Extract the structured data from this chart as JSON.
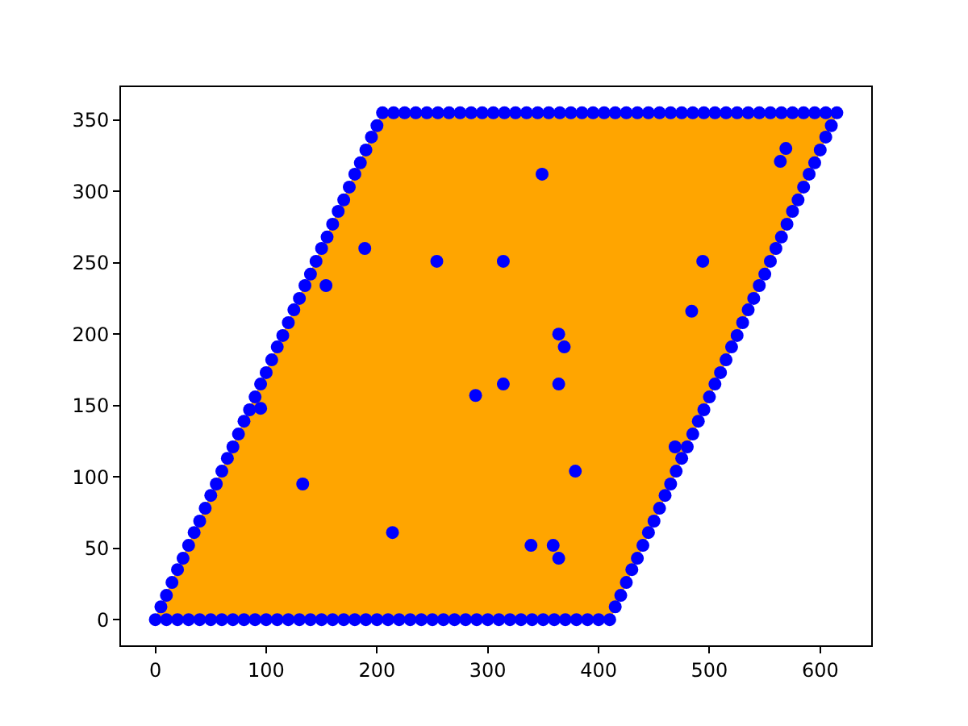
{
  "chart_data": {
    "type": "scatter",
    "xlim": [
      -31,
      646
    ],
    "ylim": [
      -18,
      373
    ],
    "xticks": [
      0,
      100,
      200,
      300,
      400,
      500,
      600
    ],
    "yticks": [
      0,
      50,
      100,
      150,
      200,
      250,
      300,
      350
    ],
    "series": [
      {
        "type": "area",
        "marker": "none",
        "color": "#ffa500",
        "x": [
          0,
          410,
          615,
          205,
          0
        ],
        "values": [
          0,
          0,
          355,
          355,
          0
        ]
      },
      {
        "marker": "circle",
        "color": "#0000ff",
        "x": [
          0,
          10,
          20,
          30,
          40,
          50,
          60,
          70,
          80,
          90,
          100,
          110,
          120,
          130,
          140,
          150,
          160,
          170,
          180,
          190,
          200,
          210,
          220,
          230,
          240,
          250,
          260,
          270,
          280,
          290,
          300,
          310,
          320,
          330,
          340,
          350,
          360,
          370,
          380,
          390,
          400,
          410,
          415,
          420,
          425,
          430,
          435,
          440,
          445,
          450,
          455,
          460,
          465,
          470,
          475,
          480,
          485,
          490,
          495,
          500,
          505,
          510,
          515,
          520,
          525,
          530,
          535,
          540,
          545,
          550,
          555,
          560,
          565,
          570,
          575,
          580,
          585,
          590,
          595,
          600,
          605,
          610,
          615,
          605,
          595,
          585,
          575,
          565,
          555,
          545,
          535,
          525,
          515,
          505,
          495,
          485,
          475,
          465,
          455,
          445,
          435,
          425,
          415,
          405,
          395,
          385,
          375,
          365,
          355,
          345,
          335,
          325,
          315,
          305,
          295,
          285,
          275,
          265,
          255,
          245,
          235,
          225,
          215,
          205,
          200,
          195,
          190,
          185,
          180,
          175,
          170,
          165,
          160,
          155,
          150,
          145,
          140,
          135,
          130,
          125,
          120,
          115,
          110,
          105,
          100,
          95,
          90,
          85,
          80,
          75,
          70,
          65,
          60,
          55,
          50,
          45,
          40,
          35,
          30,
          25,
          20,
          15,
          10,
          5,
          189,
          154,
          254,
          314,
          314,
          289,
          349,
          494,
          484,
          364,
          369,
          364,
          569,
          564,
          133,
          214,
          95,
          339,
          359,
          364,
          379,
          469
        ],
        "values": [
          0,
          0,
          0,
          0,
          0,
          0,
          0,
          0,
          0,
          0,
          0,
          0,
          0,
          0,
          0,
          0,
          0,
          0,
          0,
          0,
          0,
          0,
          0,
          0,
          0,
          0,
          0,
          0,
          0,
          0,
          0,
          0,
          0,
          0,
          0,
          0,
          0,
          0,
          0,
          0,
          0,
          0,
          9,
          17,
          26,
          35,
          43,
          52,
          61,
          69,
          78,
          87,
          95,
          104,
          113,
          121,
          130,
          139,
          147,
          156,
          165,
          173,
          182,
          191,
          199,
          208,
          217,
          225,
          234,
          242,
          251,
          260,
          268,
          277,
          286,
          294,
          303,
          312,
          320,
          329,
          338,
          346,
          355,
          355,
          355,
          355,
          355,
          355,
          355,
          355,
          355,
          355,
          355,
          355,
          355,
          355,
          355,
          355,
          355,
          355,
          355,
          355,
          355,
          355,
          355,
          355,
          355,
          355,
          355,
          355,
          355,
          355,
          355,
          355,
          355,
          355,
          355,
          355,
          355,
          355,
          355,
          355,
          355,
          355,
          346,
          338,
          329,
          320,
          312,
          303,
          294,
          286,
          277,
          268,
          260,
          251,
          242,
          234,
          225,
          217,
          208,
          199,
          191,
          182,
          173,
          165,
          156,
          147,
          139,
          130,
          121,
          113,
          104,
          95,
          87,
          78,
          69,
          61,
          52,
          43,
          35,
          26,
          17,
          9,
          260,
          234,
          251,
          251,
          165,
          157,
          312,
          251,
          216,
          200,
          191,
          165,
          330,
          321,
          95,
          61,
          148,
          52,
          52,
          43,
          104,
          121
        ]
      }
    ]
  }
}
